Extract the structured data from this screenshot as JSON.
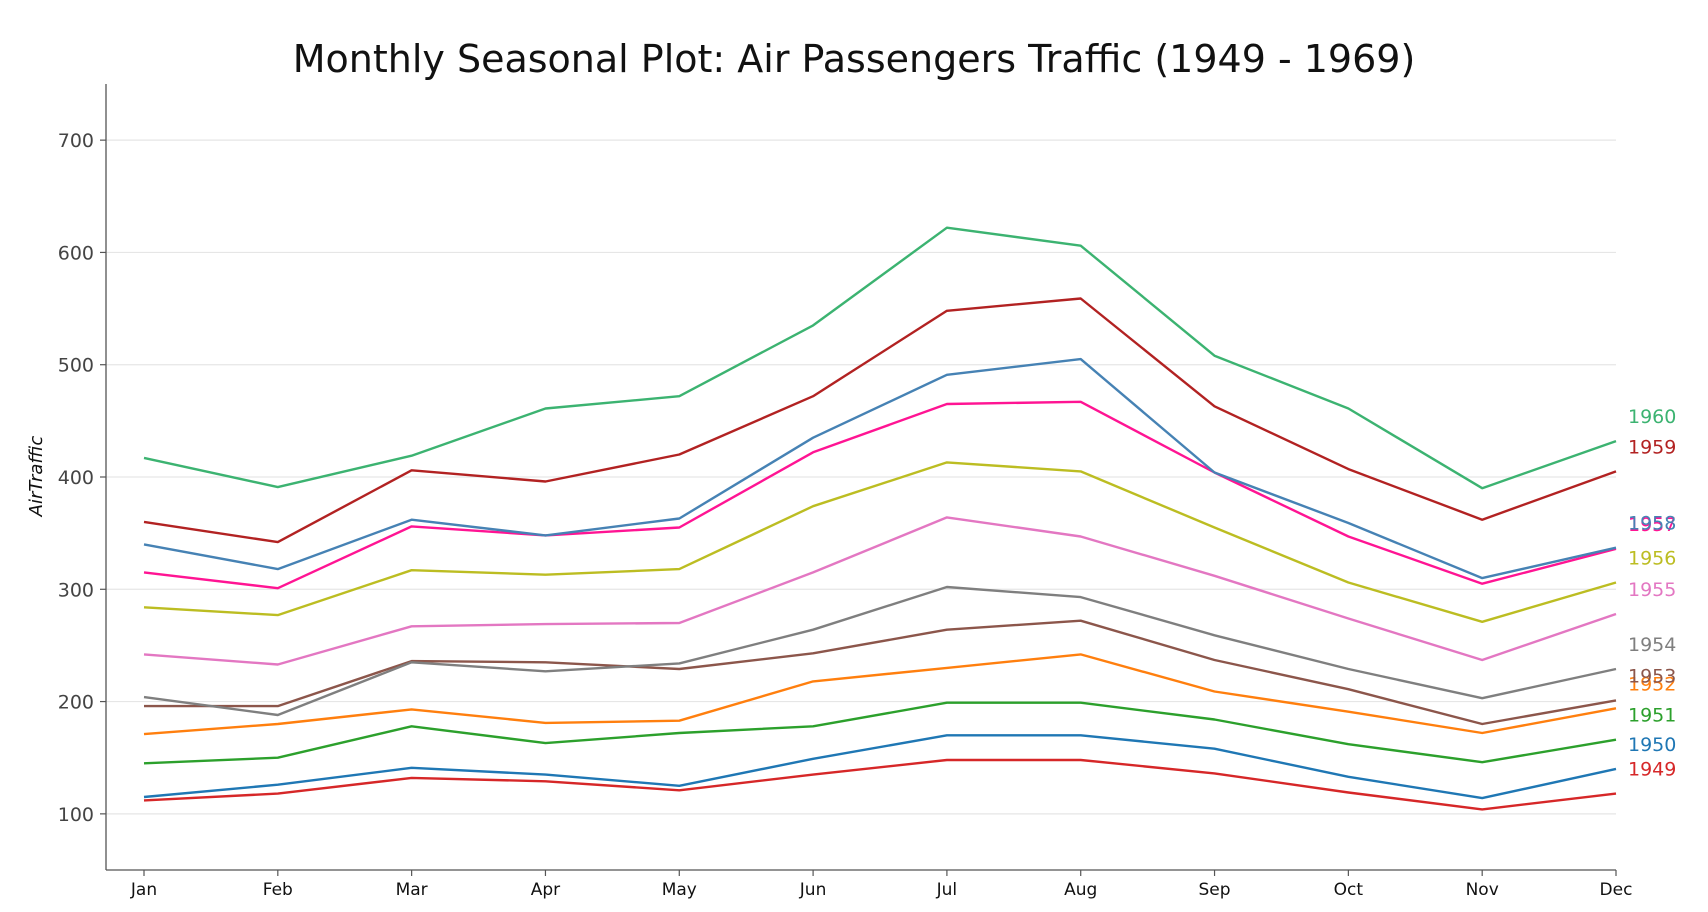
{
  "chart_data": {
    "type": "line",
    "title": "Monthly Seasonal Plot: Air Passengers Traffic (1949 - 1969)",
    "xlabel": "",
    "ylabel": "AirTraffic",
    "categories": [
      "Jan",
      "Feb",
      "Mar",
      "Apr",
      "May",
      "Jun",
      "Jul",
      "Aug",
      "Sep",
      "Oct",
      "Nov",
      "Dec"
    ],
    "ylim": [
      50,
      750
    ],
    "yticks": [
      100,
      200,
      300,
      400,
      500,
      600,
      700
    ],
    "grid": "horizontal",
    "legend": "labels at right end of each line",
    "series": [
      {
        "name": "1949",
        "color": "#d62728",
        "values": [
          112,
          118,
          132,
          129,
          121,
          135,
          148,
          148,
          136,
          119,
          104,
          118
        ]
      },
      {
        "name": "1950",
        "color": "#1f77b4",
        "values": [
          115,
          126,
          141,
          135,
          125,
          149,
          170,
          170,
          158,
          133,
          114,
          140
        ]
      },
      {
        "name": "1951",
        "color": "#2ca02c",
        "values": [
          145,
          150,
          178,
          163,
          172,
          178,
          199,
          199,
          184,
          162,
          146,
          166
        ]
      },
      {
        "name": "1952",
        "color": "#ff7f0e",
        "values": [
          171,
          180,
          193,
          181,
          183,
          218,
          230,
          242,
          209,
          191,
          172,
          194
        ]
      },
      {
        "name": "1953",
        "color": "#8c564b",
        "values": [
          196,
          196,
          236,
          235,
          229,
          243,
          264,
          272,
          237,
          211,
          180,
          201
        ]
      },
      {
        "name": "1954",
        "color": "#7f7f7f",
        "values": [
          204,
          188,
          235,
          227,
          234,
          264,
          302,
          293,
          259,
          229,
          203,
          229
        ]
      },
      {
        "name": "1955",
        "color": "#e377c2",
        "values": [
          242,
          233,
          267,
          269,
          270,
          315,
          364,
          347,
          312,
          274,
          237,
          278
        ]
      },
      {
        "name": "1956",
        "color": "#bcbd22",
        "values": [
          284,
          277,
          317,
          313,
          318,
          374,
          413,
          405,
          355,
          306,
          271,
          306
        ]
      },
      {
        "name": "1957",
        "color": "#ff1493",
        "values": [
          315,
          301,
          356,
          348,
          355,
          422,
          465,
          467,
          404,
          347,
          305,
          336
        ]
      },
      {
        "name": "1958",
        "color": "#4682b4",
        "values": [
          340,
          318,
          362,
          348,
          363,
          435,
          491,
          505,
          404,
          359,
          310,
          337
        ]
      },
      {
        "name": "1959",
        "color": "#b22222",
        "values": [
          360,
          342,
          406,
          396,
          420,
          472,
          548,
          559,
          463,
          407,
          362,
          405
        ]
      },
      {
        "name": "1960",
        "color": "#3cb371",
        "values": [
          417,
          391,
          419,
          461,
          472,
          535,
          622,
          606,
          508,
          461,
          390,
          432
        ]
      }
    ]
  }
}
